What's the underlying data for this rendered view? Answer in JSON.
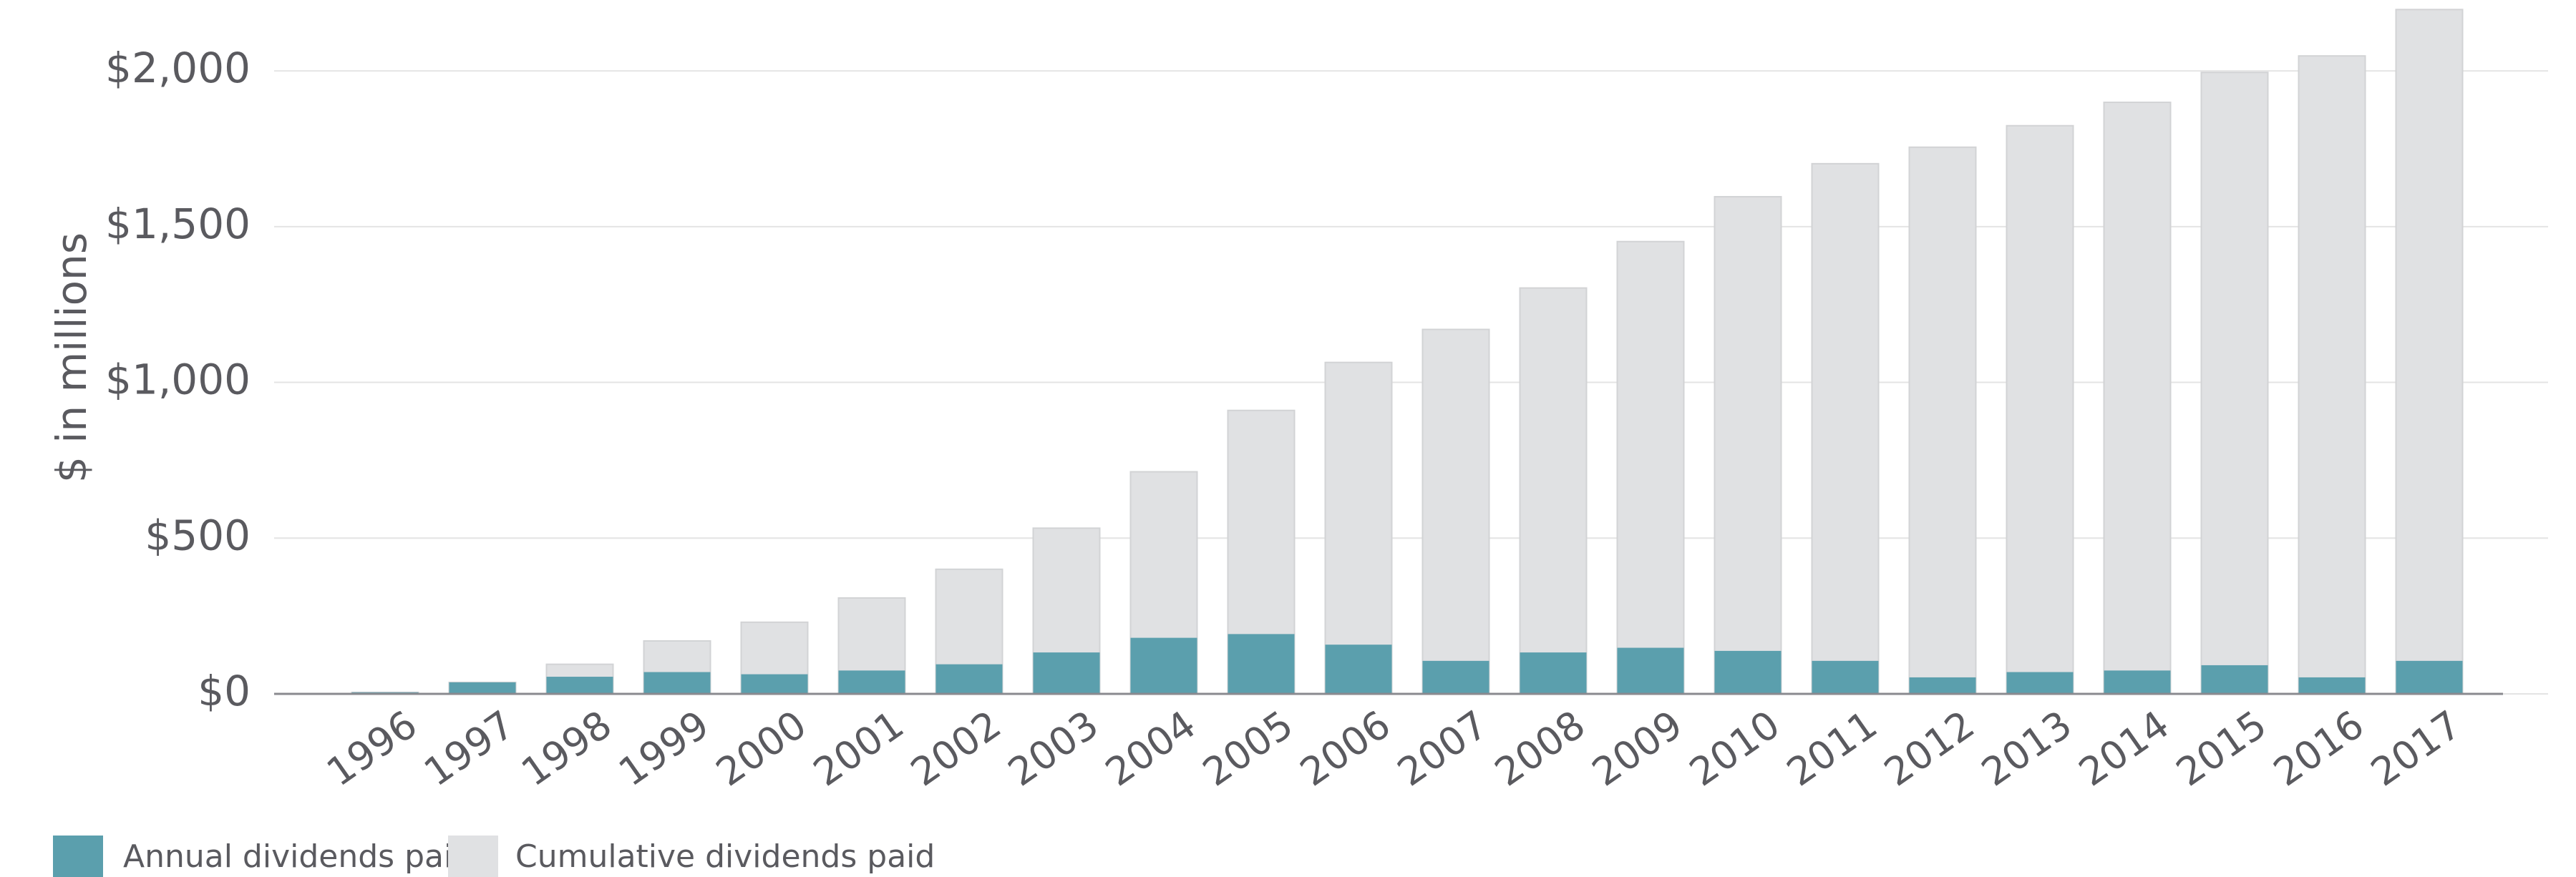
{
  "chart_data": {
    "type": "bar",
    "y_label": "$ in millions",
    "categories": [
      "1996",
      "1997",
      "1998",
      "1999",
      "2000",
      "2001",
      "2002",
      "2003",
      "2004",
      "2005",
      "2006",
      "2007",
      "2008",
      "2009",
      "2010",
      "2011",
      "2012",
      "2013",
      "2014",
      "2015",
      "2016",
      "2017"
    ],
    "series": [
      {
        "name": "Cumulative dividends paid",
        "color": "#e0e1e3",
        "values": [
          5,
          37,
          95,
          170,
          230,
          308,
          400,
          532,
          713,
          910,
          1064,
          1170,
          1303,
          1452,
          1596,
          1702,
          1755,
          1824,
          1899,
          1995,
          2048,
          2197
        ]
      },
      {
        "name": "Annual dividends paid",
        "color": "#5b9fad",
        "values": [
          5,
          37,
          55,
          70,
          63,
          75,
          95,
          133,
          180,
          192,
          158,
          106,
          133,
          148,
          138,
          106,
          53,
          70,
          75,
          92,
          53,
          106
        ]
      }
    ],
    "ylim": [
      0,
      2200
    ],
    "yticks": [
      {
        "value": 0,
        "label": "$0"
      },
      {
        "value": 500,
        "label": "$500"
      },
      {
        "value": 1000,
        "label": "$1,000"
      },
      {
        "value": 1500,
        "label": "$1,500"
      },
      {
        "value": 2000,
        "label": "$2,000"
      }
    ],
    "grid": true
  }
}
